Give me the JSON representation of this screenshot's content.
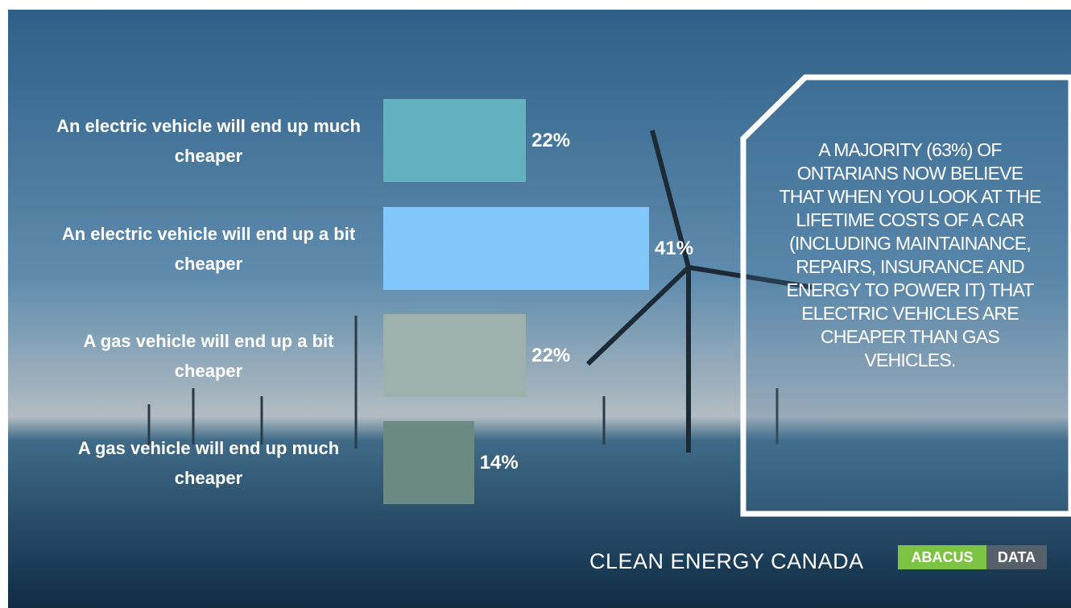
{
  "chart_data": {
    "type": "bar",
    "orientation": "horizontal",
    "categories": [
      "An electric vehicle will end up much cheaper",
      "An electric vehicle will end up a bit cheaper",
      "A gas vehicle will end up a bit cheaper",
      "A gas vehicle will end up much cheaper"
    ],
    "values": [
      22,
      41,
      22,
      14
    ],
    "value_labels": [
      "22%",
      "41%",
      "22%",
      "14%"
    ],
    "colors": [
      "#63b1bc",
      "#82c8fc",
      "#9fb1ad",
      "#6b8a82"
    ]
  },
  "callout": "A MAJORITY (63%) OF ONTARIANS NOW BELIEVE THAT WHEN YOU LOOK AT THE LIFETIME COSTS OF A CAR (INCLUDING MAINTAINANCE, REPAIRS, INSURANCE AND ENERGY TO POWER IT) THAT ELECTRIC VEHICLES ARE CHEAPER THAN GAS VEHICLES.",
  "logos": {
    "clean_energy": "CLEAN ENERGY CANADA",
    "abacus": "ABACUS",
    "data": "DATA"
  }
}
